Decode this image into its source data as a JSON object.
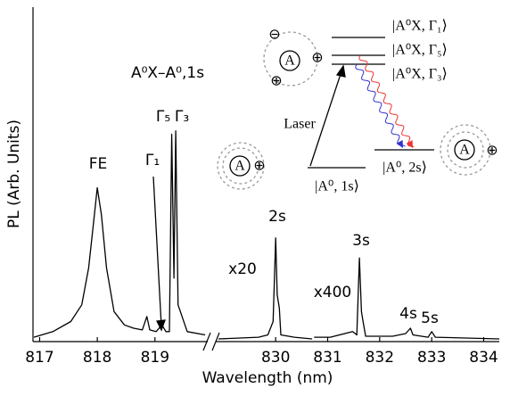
{
  "chart_data": [
    {
      "type": "line",
      "ylabel": "PL (Arb. Units)",
      "xlim": [
        816.9,
        819.9
      ],
      "ylim": [
        0,
        1
      ],
      "xticks": [
        817,
        818,
        819
      ],
      "series": [
        {
          "color": "#000000",
          "x": [
            816.9,
            817.23,
            817.54,
            817.73,
            817.85,
            817.95,
            818.0,
            818.07,
            818.16,
            818.29,
            818.47,
            818.63,
            818.78,
            818.86,
            818.91,
            819.02,
            819.12,
            819.19,
            819.25,
            819.29,
            819.33,
            819.36,
            819.4,
            819.56,
            819.87
          ],
          "values": [
            0.013,
            0.03,
            0.06,
            0.11,
            0.22,
            0.38,
            0.46,
            0.38,
            0.22,
            0.09,
            0.05,
            0.04,
            0.035,
            0.075,
            0.035,
            0.03,
            0.05,
            0.03,
            0.03,
            0.62,
            0.19,
            0.63,
            0.11,
            0.03,
            0.02
          ]
        }
      ],
      "annotations": [
        "FE",
        "Γ₁",
        "Γ₅",
        "Γ₃",
        "A⁰X–A⁰,1s"
      ]
    },
    {
      "type": "line",
      "xlabel": "Wavelength (nm)",
      "xlim": [
        828.9,
        834.3
      ],
      "ylim": [
        0,
        1
      ],
      "xticks": [
        830,
        831,
        832,
        833,
        834
      ],
      "series": [
        {
          "name": "x20",
          "color": "#000000",
          "x": [
            828.9,
            829.67,
            829.85,
            829.95,
            830.0,
            830.03,
            830.07,
            830.1,
            830.36,
            830.7
          ],
          "values": [
            0.008,
            0.013,
            0.02,
            0.06,
            0.31,
            0.14,
            0.1,
            0.02,
            0.013,
            0.008
          ]
        },
        {
          "name": "x400",
          "color": "#000000",
          "x": [
            830.74,
            831.05,
            831.48,
            831.56,
            831.61,
            831.65,
            831.68,
            831.73,
            832.25,
            832.5,
            832.59,
            832.64,
            832.93,
            833.0,
            833.07,
            834.3
          ],
          "values": [
            0.013,
            0.013,
            0.03,
            0.02,
            0.25,
            0.09,
            0.06,
            0.016,
            0.016,
            0.024,
            0.04,
            0.02,
            0.013,
            0.03,
            0.013,
            0.008
          ]
        }
      ],
      "annotations": [
        "2s",
        "3s",
        "4s",
        "5s"
      ]
    }
  ],
  "inset": {
    "levels": [
      "|A⁰X, Γ₁⟩",
      "|A⁰X, Γ₅⟩",
      "|A⁰X, Γ₃⟩",
      "|A⁰, 1s⟩",
      "|A⁰, 2s⟩"
    ],
    "laser": "Laser",
    "atom": "A",
    "minus": "⊖",
    "plus": "⊕"
  }
}
